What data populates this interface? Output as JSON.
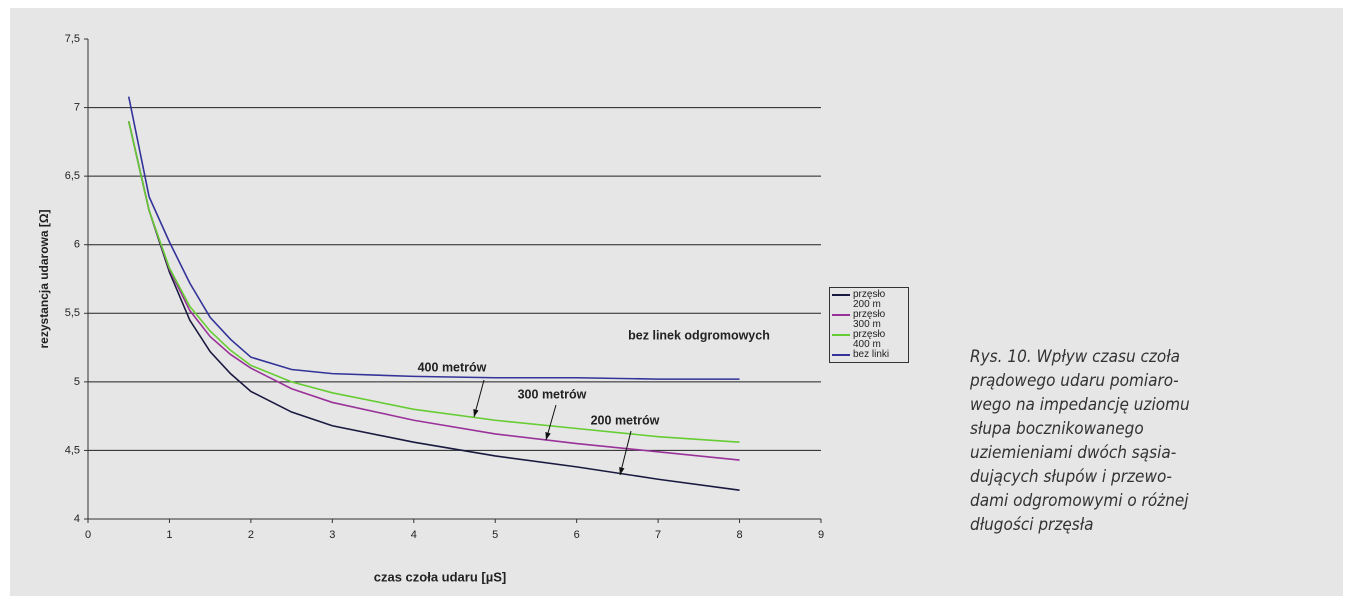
{
  "chart_data": {
    "type": "line",
    "x_label": "czas czoła udaru [µS]",
    "y_label": "rezystancja udarowa [Ω]",
    "x": [
      0.5,
      0.75,
      1,
      1.25,
      1.5,
      1.75,
      2,
      2.5,
      3,
      4,
      5,
      6,
      7,
      8
    ],
    "series": [
      {
        "name": "przęsło 200 m",
        "color": "#1a1a40",
        "values": [
          6.9,
          6.25,
          5.8,
          5.45,
          5.22,
          5.06,
          4.93,
          4.78,
          4.68,
          4.56,
          4.46,
          4.38,
          4.29,
          4.21
        ]
      },
      {
        "name": "przęsło 300 m",
        "color": "#993399",
        "values": [
          6.9,
          6.25,
          5.82,
          5.52,
          5.33,
          5.2,
          5.1,
          4.95,
          4.85,
          4.72,
          4.62,
          4.55,
          4.49,
          4.43
        ]
      },
      {
        "name": "przęsło 400 m",
        "color": "#66cc33",
        "values": [
          6.9,
          6.25,
          5.83,
          5.55,
          5.37,
          5.23,
          5.12,
          5.0,
          4.92,
          4.8,
          4.72,
          4.66,
          4.6,
          4.56
        ]
      },
      {
        "name": "bez linki",
        "color": "#333399",
        "values": [
          7.08,
          6.35,
          6.02,
          5.72,
          5.47,
          5.31,
          5.18,
          5.09,
          5.06,
          5.04,
          5.03,
          5.03,
          5.02,
          5.02
        ]
      }
    ],
    "xlim": [
      0,
      9
    ],
    "xticks": [
      0,
      1,
      2,
      3,
      4,
      5,
      6,
      7,
      8,
      9
    ],
    "ylim": [
      4,
      7.5
    ],
    "yticks": [
      {
        "value": 4,
        "label": "4"
      },
      {
        "value": 4.5,
        "label": "4,5"
      },
      {
        "value": 5,
        "label": "5"
      },
      {
        "value": 5.5,
        "label": "5,5"
      },
      {
        "value": 6,
        "label": "6"
      },
      {
        "value": 6.5,
        "label": "6,5"
      },
      {
        "value": 7,
        "label": "7"
      },
      {
        "value": 7.5,
        "label": "7,5"
      }
    ],
    "grid": true,
    "legend": "right",
    "annotations": [
      "bez linek odgromowych",
      "400 metrów",
      "300 metrów",
      "200 metrów"
    ]
  },
  "caption": [
    "Rys. 10. Wpływ czasu czoła",
    "prądowego udaru pomiaro-",
    "wego na impedancję uziomu",
    "słupa  bocznikowanego",
    "uziemieniami dwóch sąsia-",
    "dujących słupów i przewo-",
    "dami odgromowymi o różnej",
    "długości przęsła"
  ]
}
